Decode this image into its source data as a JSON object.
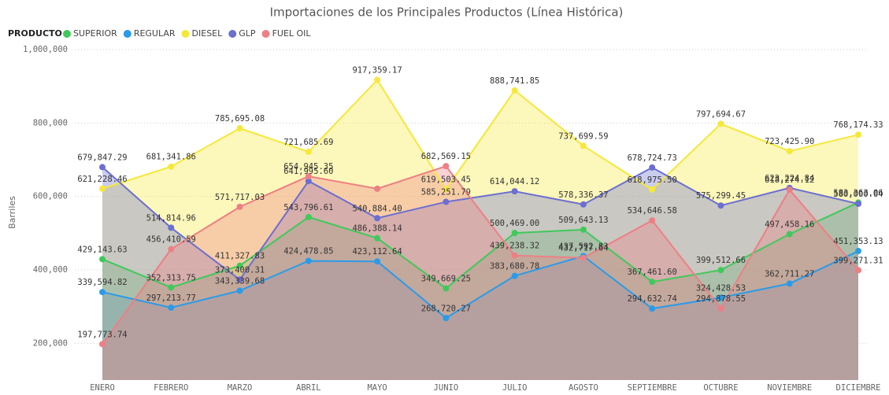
{
  "chart_data": {
    "type": "area",
    "title": "Importaciones de los Principales Productos (Línea Histórica)",
    "legend_title": "PRODUCTO",
    "y_label": "Barriles",
    "categories": [
      "ENERO",
      "FEBRERO",
      "MARZO",
      "ABRIL",
      "MAYO",
      "JUNIO",
      "JULIO",
      "AGOSTO",
      "SEPTIEMBRE",
      "OCTUBRE",
      "NOVIEMBRE",
      "DICIEMBRE"
    ],
    "ylim": [
      100000,
      1000000
    ],
    "yticks": [
      {
        "value": 200000,
        "label": "200,000"
      },
      {
        "value": 400000,
        "label": "400,000"
      },
      {
        "value": 600000,
        "label": "600,000"
      },
      {
        "value": 800000,
        "label": "800,000"
      },
      {
        "value": 1000000,
        "label": "1,000,000"
      }
    ],
    "grid": true,
    "series": [
      {
        "name": "SUPERIOR",
        "color": "#3fc95b",
        "values": [
          429143.63,
          352313.75,
          411327.83,
          543796.61,
          486388.14,
          349669.25,
          500469.0,
          509643.13,
          367461.6,
          399512.66,
          497458.16,
          583363.06
        ],
        "value_labels": [
          "429,143.63",
          "352,313.75",
          "411,327.83",
          "543,796.61",
          "486,388.14",
          "349,669.25",
          "500,469.00",
          "509,643.13",
          "367,461.60",
          "399,512.66",
          "497,458.16",
          "583,363.06"
        ]
      },
      {
        "name": "REGULAR",
        "color": "#2a9be8",
        "values": [
          339594.82,
          297213.77,
          343339.68,
          424478.85,
          423112.64,
          268720.27,
          383680.78,
          437592.83,
          294632.74,
          324428.53,
          362711.27,
          451353.13
        ],
        "value_labels": [
          "339,594.82",
          "297,213.77",
          "343,339.68",
          "424,478.85",
          "423,112.64",
          "268,720.27",
          "383,680.78",
          "437,592.83",
          "294,632.74",
          "324,428.53",
          "362,711.27",
          "451,353.13"
        ]
      },
      {
        "name": "DIESEL",
        "color": "#f5e83a",
        "values": [
          621228.46,
          681341.86,
          785695.08,
          721685.69,
          917359.17,
          619503.45,
          888741.85,
          737699.59,
          618975.5,
          797694.67,
          723425.9,
          768174.33
        ],
        "value_labels": [
          "621,228.46",
          "681,341.86",
          "785,695.08",
          "721,685.69",
          "917,359.17",
          "619,503.45",
          "888,741.85",
          "737,699.59",
          "618,975.50",
          "797,694.67",
          "723,425.90",
          "768,174.33"
        ]
      },
      {
        "name": "GLP",
        "color": "#6b6fd1",
        "values": [
          679847.29,
          514814.96,
          373400.31,
          641995.6,
          540884.4,
          585251.79,
          614044.12,
          578336.37,
          678724.73,
          575299.45,
          623224.84,
          580000.04
        ],
        "value_labels": [
          "679,847.29",
          "514,814.96",
          "373,400.31",
          "641,995.60",
          "540,884.40",
          "585,251.79",
          "614,044.12",
          "578,336.37",
          "678,724.73",
          "575,299.45",
          "623,224.84",
          "580,000.04"
        ]
      },
      {
        "name": "FUEL OIL",
        "color": "#ee7f84",
        "values": [
          197773.74,
          456410.59,
          571717.03,
          654945.35,
          621000,
          682569.15,
          439238.32,
          432717.64,
          534646.58,
          294878.55,
          618274.12,
          399271.31
        ],
        "value_labels": [
          "197,773.74",
          "456,410.59",
          "571,717.03",
          "654,945.35",
          null,
          "682,569.15",
          "439,238.32",
          "432,717.64",
          "534,646.58",
          "294,878.55",
          "618,274.12",
          "399,271.31"
        ]
      }
    ]
  }
}
